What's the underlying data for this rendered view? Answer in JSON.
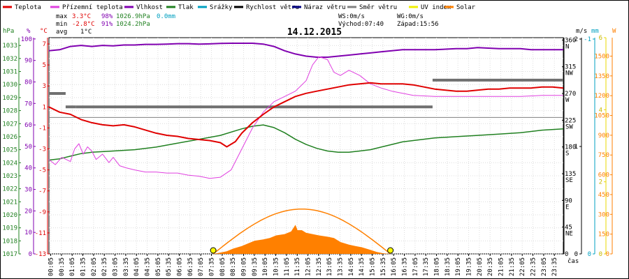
{
  "chart_data": {
    "type": "line",
    "title": "14.12.2015",
    "legend": [
      {
        "name": "Teplota",
        "color": "#e00000"
      },
      {
        "name": "Přízemní teplota",
        "color": "#e040e0"
      },
      {
        "name": "Vlhkost",
        "color": "#8000b0"
      },
      {
        "name": "Tlak",
        "color": "#208020"
      },
      {
        "name": "Srážky",
        "color": "#00a0c0"
      },
      {
        "name": "Rychlost větru",
        "color": "#000000"
      },
      {
        "name": "Náraz větru",
        "color": "#000080"
      },
      {
        "name": "Směr větru",
        "color": "#808080"
      },
      {
        "name": "UV index",
        "color": "#f0f000"
      },
      {
        "name": "Solar",
        "color": "#ff8000"
      }
    ],
    "stats": {
      "max_label": "max",
      "max_temp": "3.3°C",
      "max_hum": "98%",
      "max_press": "1026.9hPa",
      "max_rain": "0.0mm",
      "min_label": "min",
      "min_temp": "-2.8°C",
      "min_hum": "91%",
      "min_press": "1024.2hPa",
      "avg_label": "avg",
      "avg_temp": "1°C",
      "ws": "WS:0m/s",
      "wg": "WG:0m/s",
      "sunrise": "Východ:07:40",
      "sunset": "Západ:15:56"
    },
    "axes": {
      "hpa": {
        "unit": "hPa",
        "ticks": [
          "1033",
          "1032",
          "1031",
          "1030",
          "1029",
          "1028",
          "1027",
          "1026",
          "1025",
          "1024",
          "1023",
          "1022",
          "1021",
          "1020",
          "1019",
          "1018",
          "1017"
        ]
      },
      "pct": {
        "unit": "%",
        "ticks": [
          "100",
          "90",
          "80",
          "70",
          "60",
          "50",
          "40",
          "30",
          "20",
          "10",
          "0"
        ]
      },
      "temp": {
        "unit": "°C",
        "ticks": [
          "7",
          "5",
          "3",
          "1",
          "-1",
          "-3",
          "-5",
          "-7",
          "-9",
          "-11",
          "-13"
        ]
      },
      "dir": {
        "ticks": [
          {
            "v": "360",
            "l": "N"
          },
          {
            "v": "315",
            "l": "NW"
          },
          {
            "v": "270",
            "l": "W"
          },
          {
            "v": "225",
            "l": "SW"
          },
          {
            "v": "180",
            "l": "S"
          },
          {
            "v": "135",
            "l": "SE"
          },
          {
            "v": "90",
            "l": "E"
          },
          {
            "v": "45",
            "l": "NE"
          },
          {
            "v": "0",
            "l": ""
          }
        ]
      },
      "ms": {
        "unit": "m/s",
        "ticks": [
          "2",
          "1",
          "0"
        ]
      },
      "mm": {
        "unit": "mm",
        "ticks": [
          "-1",
          "0"
        ]
      },
      "uv": {
        "ticks": [
          "6",
          "4",
          "2",
          "0"
        ]
      },
      "w": {
        "unit": "W",
        "ticks": [
          "1500",
          "1350",
          "1200",
          "1050",
          "900",
          "750",
          "600",
          "450",
          "300",
          "150",
          "0"
        ]
      },
      "x_label": "čas",
      "x_ticks": [
        "00:05",
        "00:35",
        "01:05",
        "01:35",
        "02:05",
        "02:35",
        "03:05",
        "03:35",
        "04:05",
        "04:35",
        "05:05",
        "05:35",
        "06:05",
        "06:35",
        "07:05",
        "07:35",
        "08:05",
        "08:35",
        "09:05",
        "09:35",
        "10:05",
        "10:35",
        "11:05",
        "11:35",
        "12:05",
        "12:35",
        "13:05",
        "13:35",
        "14:05",
        "14:35",
        "15:05",
        "15:35",
        "16:05",
        "16:35",
        "17:05",
        "17:35",
        "18:05",
        "18:35",
        "19:05",
        "19:35",
        "20:05",
        "20:35",
        "21:05",
        "21:35",
        "22:05",
        "22:35",
        "23:05",
        "23:35"
      ]
    },
    "x_range_hours": [
      0,
      24
    ],
    "series": {
      "teplota": [
        [
          0.0,
          1.0
        ],
        [
          0.5,
          0.5
        ],
        [
          1.0,
          0.3
        ],
        [
          1.5,
          -0.2
        ],
        [
          2.0,
          -0.5
        ],
        [
          2.5,
          -0.7
        ],
        [
          3.0,
          -0.8
        ],
        [
          3.5,
          -0.7
        ],
        [
          4.0,
          -0.9
        ],
        [
          4.5,
          -1.2
        ],
        [
          5.0,
          -1.5
        ],
        [
          5.5,
          -1.7
        ],
        [
          6.0,
          -1.8
        ],
        [
          6.5,
          -2.0
        ],
        [
          7.0,
          -2.1
        ],
        [
          7.5,
          -2.2
        ],
        [
          8.0,
          -2.4
        ],
        [
          8.3,
          -2.8
        ],
        [
          8.7,
          -2.3
        ],
        [
          9.0,
          -1.5
        ],
        [
          9.5,
          -0.5
        ],
        [
          10.0,
          0.3
        ],
        [
          10.5,
          1.0
        ],
        [
          11.0,
          1.5
        ],
        [
          11.5,
          2.0
        ],
        [
          12.0,
          2.3
        ],
        [
          12.5,
          2.5
        ],
        [
          13.0,
          2.7
        ],
        [
          13.5,
          2.9
        ],
        [
          14.0,
          3.1
        ],
        [
          14.5,
          3.2
        ],
        [
          15.0,
          3.3
        ],
        [
          15.5,
          3.2
        ],
        [
          16.0,
          3.2
        ],
        [
          16.5,
          3.2
        ],
        [
          17.0,
          3.1
        ],
        [
          17.5,
          2.9
        ],
        [
          18.0,
          2.7
        ],
        [
          18.5,
          2.6
        ],
        [
          19.0,
          2.5
        ],
        [
          19.5,
          2.5
        ],
        [
          20.0,
          2.6
        ],
        [
          20.5,
          2.7
        ],
        [
          21.0,
          2.7
        ],
        [
          21.5,
          2.8
        ],
        [
          22.0,
          2.8
        ],
        [
          22.5,
          2.8
        ],
        [
          23.0,
          2.9
        ],
        [
          23.5,
          2.9
        ],
        [
          24.0,
          2.8
        ]
      ],
      "prizemni": [
        [
          0.0,
          -4.0
        ],
        [
          0.3,
          -4.5
        ],
        [
          0.6,
          -3.8
        ],
        [
          1.0,
          -4.2
        ],
        [
          1.2,
          -3.0
        ],
        [
          1.4,
          -2.5
        ],
        [
          1.6,
          -3.5
        ],
        [
          1.8,
          -2.8
        ],
        [
          2.0,
          -3.2
        ],
        [
          2.2,
          -4.0
        ],
        [
          2.5,
          -3.5
        ],
        [
          2.8,
          -4.3
        ],
        [
          3.0,
          -3.8
        ],
        [
          3.3,
          -4.6
        ],
        [
          3.6,
          -4.8
        ],
        [
          4.0,
          -5.0
        ],
        [
          4.5,
          -5.2
        ],
        [
          5.0,
          -5.2
        ],
        [
          5.5,
          -5.3
        ],
        [
          6.0,
          -5.3
        ],
        [
          6.5,
          -5.5
        ],
        [
          7.0,
          -5.6
        ],
        [
          7.5,
          -5.8
        ],
        [
          8.0,
          -5.7
        ],
        [
          8.5,
          -5.0
        ],
        [
          9.0,
          -3.0
        ],
        [
          9.5,
          -1.0
        ],
        [
          10.0,
          0.5
        ],
        [
          10.5,
          1.5
        ],
        [
          11.0,
          2.0
        ],
        [
          11.5,
          2.5
        ],
        [
          12.0,
          3.5
        ],
        [
          12.3,
          5.0
        ],
        [
          12.6,
          5.8
        ],
        [
          13.0,
          5.5
        ],
        [
          13.3,
          4.3
        ],
        [
          13.6,
          4.0
        ],
        [
          14.0,
          4.5
        ],
        [
          14.5,
          4.0
        ],
        [
          15.0,
          3.2
        ],
        [
          15.5,
          2.8
        ],
        [
          16.0,
          2.5
        ],
        [
          16.5,
          2.3
        ],
        [
          17.0,
          2.1
        ],
        [
          18.0,
          2.0
        ],
        [
          19.0,
          2.0
        ],
        [
          20.0,
          2.0
        ],
        [
          21.0,
          2.0
        ],
        [
          22.0,
          2.0
        ],
        [
          23.0,
          2.1
        ],
        [
          24.0,
          2.1
        ]
      ],
      "vlhkost": [
        [
          0.0,
          94.5
        ],
        [
          0.5,
          95
        ],
        [
          1.0,
          96.5
        ],
        [
          1.5,
          97
        ],
        [
          2.0,
          96.5
        ],
        [
          2.5,
          97
        ],
        [
          3.0,
          96.8
        ],
        [
          3.5,
          97.2
        ],
        [
          4.0,
          97.2
        ],
        [
          4.5,
          97.5
        ],
        [
          5.0,
          97.5
        ],
        [
          5.5,
          97.6
        ],
        [
          6.0,
          97.8
        ],
        [
          6.5,
          97.8
        ],
        [
          7.0,
          97.6
        ],
        [
          7.5,
          97.7
        ],
        [
          8.0,
          97.9
        ],
        [
          8.5,
          98
        ],
        [
          9.0,
          98
        ],
        [
          9.5,
          98
        ],
        [
          10.0,
          97.6
        ],
        [
          10.5,
          96.5
        ],
        [
          11.0,
          94.5
        ],
        [
          11.5,
          93
        ],
        [
          12.0,
          92
        ],
        [
          12.5,
          91.5
        ],
        [
          13.0,
          91.5
        ],
        [
          13.5,
          92
        ],
        [
          14.0,
          92.5
        ],
        [
          14.5,
          93
        ],
        [
          15.0,
          93.5
        ],
        [
          15.5,
          94
        ],
        [
          16.0,
          94.5
        ],
        [
          16.5,
          95
        ],
        [
          17.0,
          95
        ],
        [
          17.5,
          95
        ],
        [
          18.0,
          95
        ],
        [
          19.0,
          95.5
        ],
        [
          19.5,
          95.5
        ],
        [
          20.0,
          96
        ],
        [
          21.0,
          95.5
        ],
        [
          22.0,
          95.5
        ],
        [
          22.5,
          95
        ],
        [
          23.0,
          95
        ],
        [
          24.0,
          95
        ]
      ],
      "tlak": [
        [
          0.0,
          1024.2
        ],
        [
          0.5,
          1024.3
        ],
        [
          1.0,
          1024.5
        ],
        [
          1.5,
          1024.7
        ],
        [
          2.0,
          1024.8
        ],
        [
          3.0,
          1024.9
        ],
        [
          4.0,
          1025.0
        ],
        [
          5.0,
          1025.2
        ],
        [
          6.0,
          1025.5
        ],
        [
          7.0,
          1025.8
        ],
        [
          8.0,
          1026.1
        ],
        [
          9.0,
          1026.6
        ],
        [
          9.5,
          1026.8
        ],
        [
          10.0,
          1026.9
        ],
        [
          10.5,
          1026.7
        ],
        [
          11.0,
          1026.3
        ],
        [
          11.5,
          1025.8
        ],
        [
          12.0,
          1025.4
        ],
        [
          12.5,
          1025.1
        ],
        [
          13.0,
          1024.9
        ],
        [
          13.5,
          1024.8
        ],
        [
          14.0,
          1024.8
        ],
        [
          14.5,
          1024.9
        ],
        [
          15.0,
          1025.0
        ],
        [
          15.5,
          1025.2
        ],
        [
          16.0,
          1025.4
        ],
        [
          16.5,
          1025.6
        ],
        [
          17.0,
          1025.7
        ],
        [
          18.0,
          1025.9
        ],
        [
          19.0,
          1026.0
        ],
        [
          20.0,
          1026.1
        ],
        [
          21.0,
          1026.2
        ],
        [
          22.0,
          1026.3
        ],
        [
          23.0,
          1026.5
        ],
        [
          24.0,
          1026.6
        ]
      ],
      "smer_vetru": [
        [
          0.0,
          0.78,
          270
        ],
        [
          0.78,
          1.25,
          247.5
        ],
        [
          1.25,
          17.9,
          247.5
        ],
        [
          17.9,
          24.0,
          292.5
        ]
      ],
      "solar": [
        [
          7.67,
          0
        ],
        [
          8.0,
          10
        ],
        [
          8.3,
          20
        ],
        [
          8.6,
          40
        ],
        [
          9.0,
          60
        ],
        [
          9.3,
          80
        ],
        [
          9.6,
          100
        ],
        [
          10.0,
          110
        ],
        [
          10.3,
          120
        ],
        [
          10.6,
          140
        ],
        [
          11.0,
          150
        ],
        [
          11.3,
          170
        ],
        [
          11.5,
          220
        ],
        [
          11.6,
          180
        ],
        [
          11.8,
          180
        ],
        [
          12.0,
          160
        ],
        [
          12.3,
          150
        ],
        [
          12.6,
          140
        ],
        [
          13.0,
          130
        ],
        [
          13.3,
          120
        ],
        [
          13.6,
          90
        ],
        [
          14.0,
          70
        ],
        [
          14.3,
          60
        ],
        [
          14.6,
          50
        ],
        [
          15.0,
          30
        ],
        [
          15.3,
          15
        ],
        [
          15.6,
          5
        ],
        [
          15.93,
          0
        ]
      ],
      "solar_max": 340
    }
  }
}
